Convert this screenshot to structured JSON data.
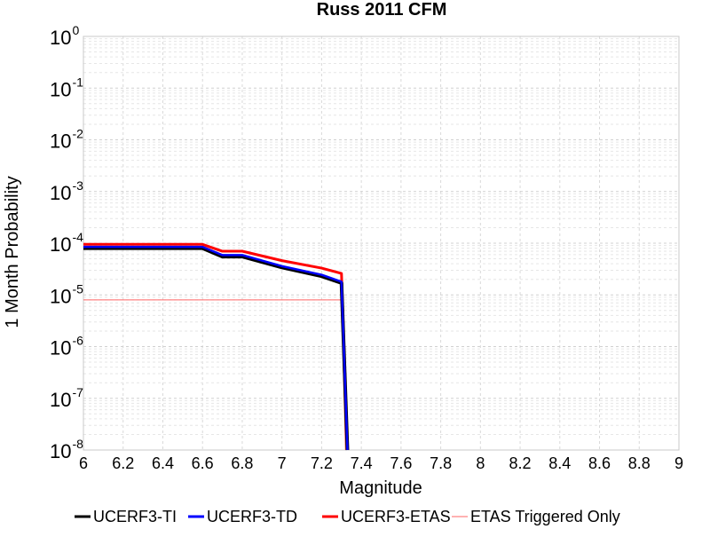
{
  "chart_data": {
    "type": "line",
    "title": "Russ 2011 CFM",
    "xlabel": "Magnitude",
    "ylabel": "1 Month Probability",
    "y_scale": "log",
    "xlim": [
      6,
      9
    ],
    "ylim": [
      1e-08,
      1
    ],
    "grid": true,
    "legend_placement": "bottom",
    "x_ticks": [
      "6",
      "6.2",
      "6.4",
      "6.6",
      "6.8",
      "7",
      "7.2",
      "7.4",
      "7.6",
      "7.8",
      "8",
      "8.2",
      "8.4",
      "8.6",
      "8.8",
      "9"
    ],
    "y_ticks": [
      {
        "value": 1,
        "base": "10",
        "exp": "0"
      },
      {
        "value": 0.1,
        "base": "10",
        "exp": "-1"
      },
      {
        "value": 0.01,
        "base": "10",
        "exp": "-2"
      },
      {
        "value": 0.001,
        "base": "10",
        "exp": "-3"
      },
      {
        "value": 0.0001,
        "base": "10",
        "exp": "-4"
      },
      {
        "value": 1e-05,
        "base": "10",
        "exp": "-5"
      },
      {
        "value": 1e-06,
        "base": "10",
        "exp": "-6"
      },
      {
        "value": 1e-07,
        "base": "10",
        "exp": "-7"
      },
      {
        "value": 1e-08,
        "base": "10",
        "exp": "-8"
      }
    ],
    "series": [
      {
        "name": "UCERF3-TI",
        "color": "#000000",
        "x": [
          6.0,
          6.6,
          6.7,
          6.8,
          7.0,
          7.2,
          7.3,
          7.33
        ],
        "y": [
          8e-05,
          8e-05,
          5.5e-05,
          5.5e-05,
          3.4e-05,
          2.3e-05,
          1.7e-05,
          1e-08
        ]
      },
      {
        "name": "UCERF3-TD",
        "color": "#0000ff",
        "x": [
          6.0,
          6.6,
          6.7,
          6.8,
          7.0,
          7.2,
          7.3,
          7.33
        ],
        "y": [
          8.5e-05,
          8.5e-05,
          5.9e-05,
          5.9e-05,
          3.6e-05,
          2.45e-05,
          1.8e-05,
          1e-08
        ]
      },
      {
        "name": "UCERF3-ETAS",
        "color": "#ff0000",
        "x": [
          6.0,
          6.6,
          6.7,
          6.8,
          7.0,
          7.2,
          7.3,
          7.33
        ],
        "y": [
          9.5e-05,
          9.5e-05,
          7e-05,
          7e-05,
          4.6e-05,
          3.3e-05,
          2.6e-05,
          1e-08
        ]
      },
      {
        "name": "ETAS Triggered Only",
        "color": "#ff6666",
        "x": [
          6.0,
          7.3,
          7.32
        ],
        "y": [
          8e-06,
          8e-06,
          1e-08
        ]
      }
    ]
  }
}
